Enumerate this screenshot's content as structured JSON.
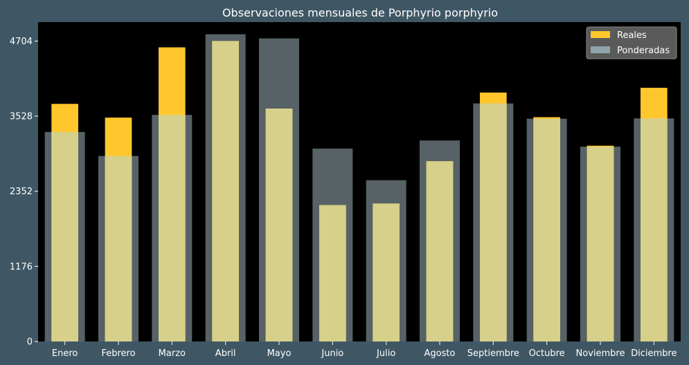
{
  "chart_data": {
    "type": "bar",
    "title": "Observaciones mensuales de Porphyrio porphyrio",
    "xlabel": "",
    "ylabel": "",
    "categories": [
      "Enero",
      "Febrero",
      "Marzo",
      "Abril",
      "Mayo",
      "Junio",
      "Julio",
      "Agosto",
      "Septiembre",
      "Octubre",
      "Noviembre",
      "Diciembre"
    ],
    "series": [
      {
        "name": "Reales",
        "color": "#ffc72c",
        "values": [
          3720,
          3505,
          4605,
          4704,
          3647,
          2135,
          2160,
          2822,
          3897,
          3512,
          3065,
          3972
        ]
      },
      {
        "name": "Ponderadas",
        "color": "#8fa3aa",
        "values": [
          3280,
          2905,
          3548,
          4810,
          4745,
          3020,
          2525,
          3147,
          3727,
          3488,
          3050,
          3493
        ]
      }
    ],
    "yticks": [
      0,
      1176,
      2352,
      3528,
      4704
    ],
    "ylim": [
      0,
      5000
    ],
    "grid": false,
    "legend": "top-right",
    "background": "#3f5765",
    "plot_background": "#000000",
    "overlap_color": "#d7d08a"
  }
}
